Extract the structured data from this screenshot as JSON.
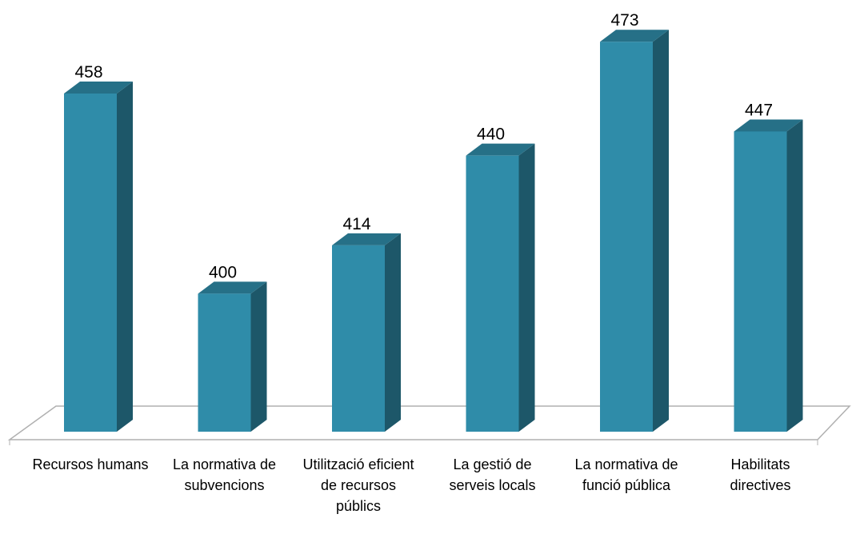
{
  "chart_data": {
    "type": "bar3d",
    "categories": [
      "Recursos humans",
      "La normativa de subvencions",
      "Utilització eficient de recursos públics",
      "La gestió de serveis locals",
      "La normativa de funció pública",
      "Habilitats directives"
    ],
    "values": [
      458,
      400,
      414,
      440,
      473,
      447
    ],
    "color": "#2f8ca9",
    "ylim": [
      360,
      480
    ]
  }
}
